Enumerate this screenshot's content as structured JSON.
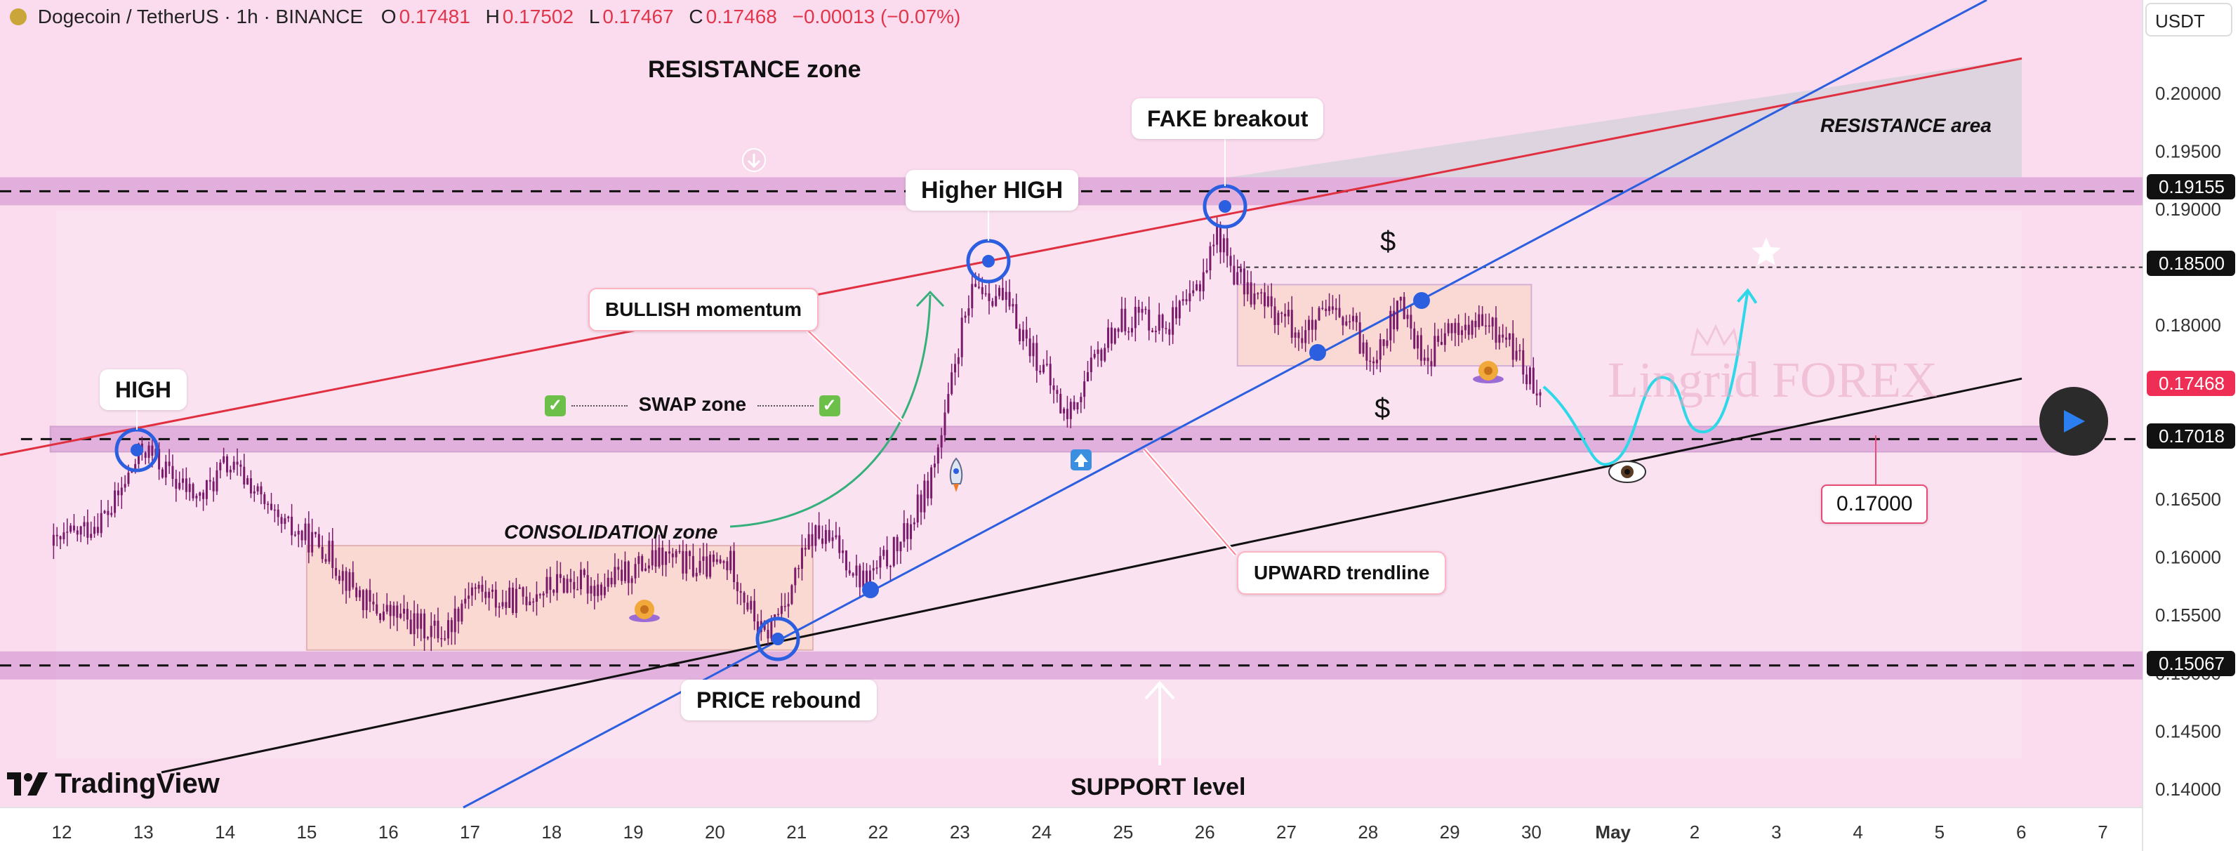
{
  "header": {
    "symbol": "Dogecoin / TetherUS · 1h · BINANCE",
    "open_key": "O",
    "open": "0.17481",
    "high_key": "H",
    "high": "0.17502",
    "low_key": "L",
    "low": "0.17467",
    "close_key": "C",
    "close": "0.17468",
    "change": "−0.00013 (−0.07%)"
  },
  "currency": "USDT",
  "logo_text": "TradingView",
  "watermark": "Lingrid FOREX",
  "colors": {
    "background": "#fbdcee",
    "candle": "#7a1a6a",
    "resistance_line": "#e03040",
    "uptrend_line": "#2b5fe0",
    "support_line": "#111111",
    "zone_fill": "#d9a0d6",
    "box_fill": "#fad6c8",
    "projection": "#2ed8e8",
    "arrow_green": "#36b07a"
  },
  "annotations": {
    "resistance_zone": "RESISTANCE zone",
    "fake_breakout": "FAKE breakout",
    "higher_high": "Higher HIGH",
    "bullish_momentum": "BULLISH momentum",
    "high": "HIGH",
    "swap_zone": "SWAP zone",
    "consolidation_zone": "CONSOLIDATION zone",
    "upward_trendline": "UPWARD trendline",
    "price_rebound": "PRICE rebound",
    "support_level": "SUPPORT level",
    "resistance_area": "RESISTANCE area",
    "target_price": "0.17000",
    "dollar_top": "$",
    "dollar_bottom": "$"
  },
  "price_labels": {
    "resistance": "0.19155",
    "target": "0.18500",
    "current": "0.17468",
    "swap": "0.17018",
    "support": "0.15067"
  },
  "chart_data": {
    "type": "candlestick",
    "title": "Dogecoin / TetherUS · 1h · BINANCE",
    "ylim": [
      0.1375,
      0.2095
    ],
    "y_ticks": [
      0.14,
      0.145,
      0.15,
      0.155,
      0.16,
      0.165,
      0.17,
      0.175,
      0.18,
      0.185,
      0.19,
      0.195,
      0.2
    ],
    "y_tick_labels": [
      "0.14000",
      "0.14500",
      "0.15000",
      "0.15500",
      "0.16000",
      "0.16500",
      "0.17000",
      "0.17500",
      "0.18000",
      "0.18500",
      "0.19000",
      "0.19500",
      "0.20000"
    ],
    "x_ticks": [
      "12",
      "13",
      "14",
      "15",
      "16",
      "17",
      "18",
      "19",
      "20",
      "21",
      "22",
      "23",
      "24",
      "25",
      "26",
      "27",
      "28",
      "29",
      "30",
      "May",
      "2",
      "3",
      "4",
      "5",
      "6",
      "7"
    ],
    "day_range": [
      12,
      37.15
    ],
    "price_path": [
      [
        11.9,
        0.161
      ],
      [
        12.3,
        0.1625
      ],
      [
        12.6,
        0.164
      ],
      [
        13.0,
        0.1695
      ],
      [
        13.4,
        0.1665
      ],
      [
        13.7,
        0.165
      ],
      [
        14.0,
        0.168
      ],
      [
        14.3,
        0.1665
      ],
      [
        14.6,
        0.163
      ],
      [
        14.9,
        0.162
      ],
      [
        15.2,
        0.161
      ],
      [
        15.5,
        0.158
      ],
      [
        15.8,
        0.1555
      ],
      [
        16.1,
        0.155
      ],
      [
        16.4,
        0.154
      ],
      [
        16.7,
        0.1535
      ],
      [
        17.0,
        0.1575
      ],
      [
        17.4,
        0.156
      ],
      [
        17.8,
        0.157
      ],
      [
        18.2,
        0.158
      ],
      [
        18.6,
        0.1575
      ],
      [
        19.0,
        0.159
      ],
      [
        19.4,
        0.16
      ],
      [
        19.8,
        0.159
      ],
      [
        20.2,
        0.1595
      ],
      [
        20.4,
        0.156
      ],
      [
        20.6,
        0.153
      ],
      [
        20.9,
        0.157
      ],
      [
        21.2,
        0.162
      ],
      [
        21.5,
        0.161
      ],
      [
        21.8,
        0.158
      ],
      [
        22.0,
        0.159
      ],
      [
        22.3,
        0.1615
      ],
      [
        22.6,
        0.166
      ],
      [
        22.8,
        0.171
      ],
      [
        23.0,
        0.179
      ],
      [
        23.2,
        0.1835
      ],
      [
        23.5,
        0.1825
      ],
      [
        23.8,
        0.179
      ],
      [
        24.0,
        0.1765
      ],
      [
        24.3,
        0.172
      ],
      [
        24.6,
        0.176
      ],
      [
        24.9,
        0.18
      ],
      [
        25.2,
        0.181
      ],
      [
        25.5,
        0.18
      ],
      [
        25.8,
        0.1815
      ],
      [
        26.0,
        0.185
      ],
      [
        26.15,
        0.188
      ],
      [
        26.4,
        0.184
      ],
      [
        26.7,
        0.182
      ],
      [
        27.0,
        0.1805
      ],
      [
        27.2,
        0.179
      ],
      [
        27.5,
        0.181
      ],
      [
        27.8,
        0.18
      ],
      [
        28.0,
        0.177
      ],
      [
        28.4,
        0.1815
      ],
      [
        28.7,
        0.177
      ],
      [
        29.0,
        0.1795
      ],
      [
        29.4,
        0.18
      ],
      [
        29.7,
        0.179
      ],
      [
        30.0,
        0.175
      ],
      [
        30.15,
        0.1747
      ]
    ],
    "levels": {
      "resistance": 0.19155,
      "target": 0.185,
      "swap": 0.17018,
      "support": 0.15067,
      "target_price": 0.17
    }
  }
}
